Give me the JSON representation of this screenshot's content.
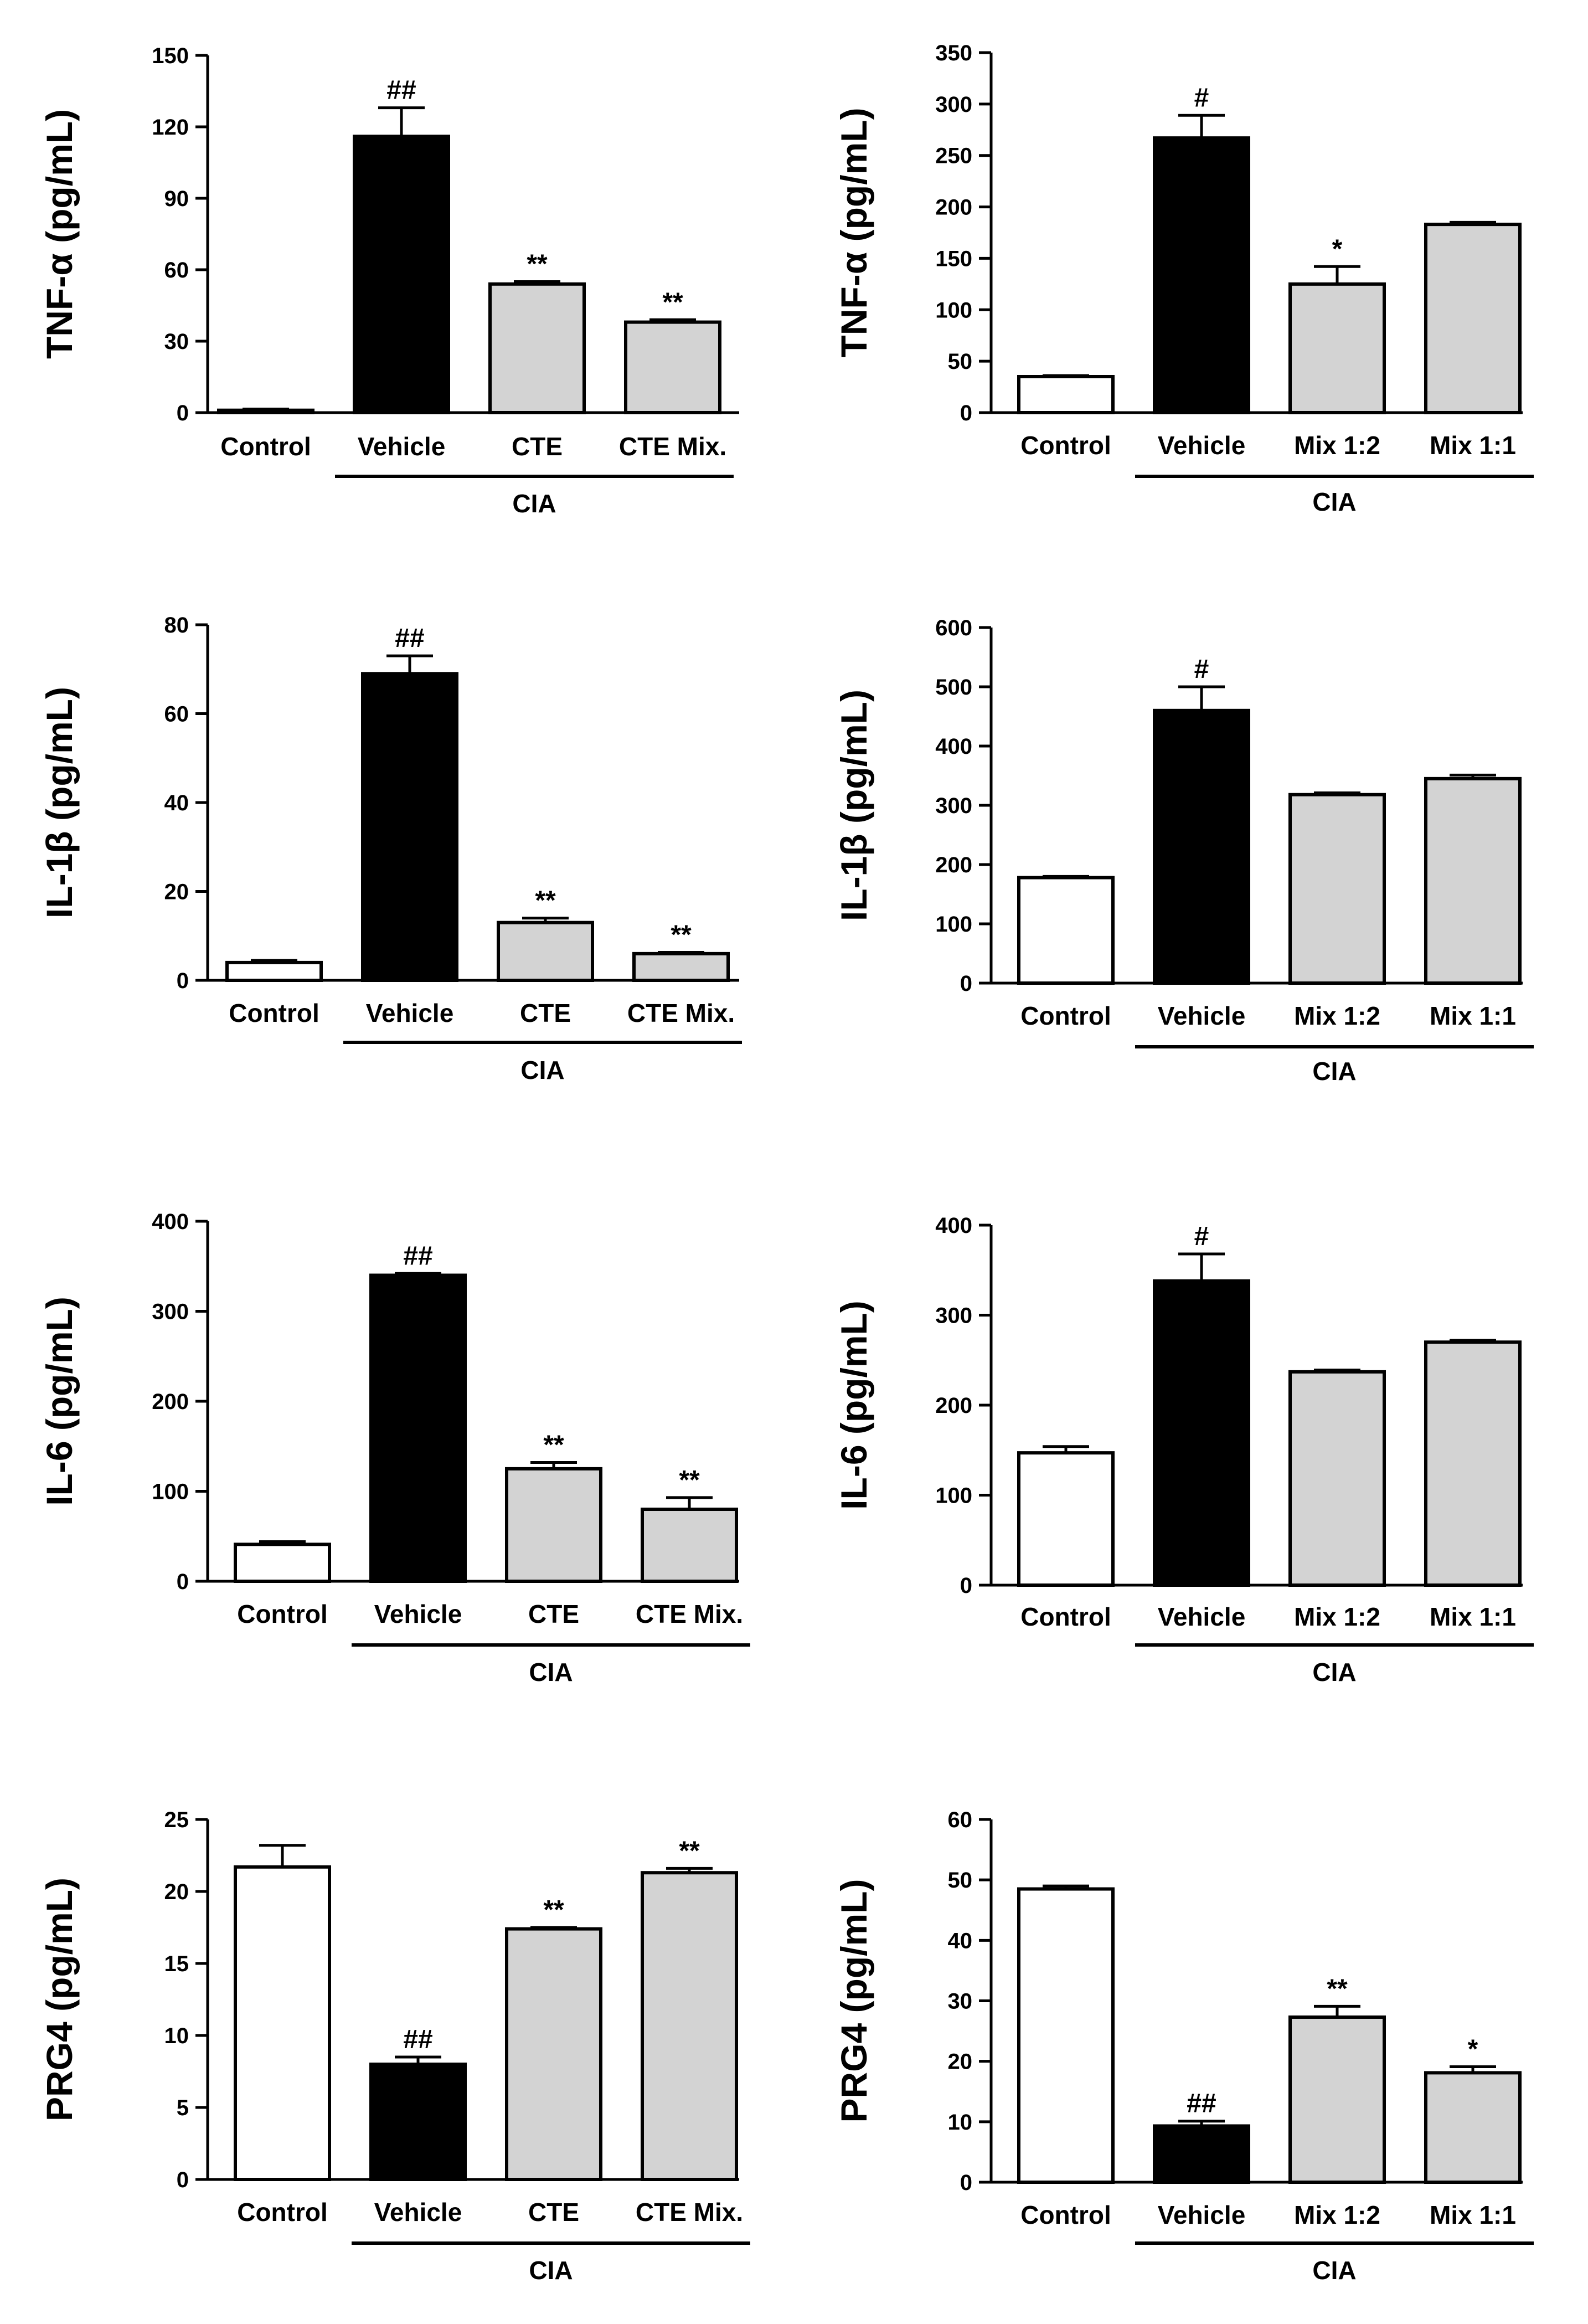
{
  "page": {
    "background": "#ffffff"
  },
  "colors": {
    "control": "#ffffff",
    "vehicle": "#000000",
    "treatment": "#d3d3d3",
    "axis": "#000000"
  },
  "chart_data": [
    {
      "id": "tnf-cte",
      "type": "bar",
      "ylabel": "TNF-α (pg/mL)",
      "ylim": [
        0,
        150
      ],
      "yticks": [
        0,
        30,
        60,
        90,
        120,
        150
      ],
      "tick_labels": [
        "0",
        "30",
        "60",
        "90",
        "120",
        "150"
      ],
      "categories": [
        "Control",
        "Vehicle",
        "CTE",
        "CTE Mix."
      ],
      "values": [
        1,
        116,
        54,
        38
      ],
      "errors": [
        0.5,
        12,
        1,
        1
      ],
      "annotations": [
        "",
        "##",
        "**",
        "**"
      ],
      "group_label": "CIA"
    },
    {
      "id": "tnf-mix",
      "type": "bar",
      "ylabel": "TNF-α (pg/mL)",
      "ylim": [
        0,
        350
      ],
      "yticks": [
        0,
        50,
        100,
        150,
        200,
        250,
        300,
        350
      ],
      "tick_labels": [
        "0",
        "50",
        "100",
        "150",
        "200",
        "250",
        "300",
        "350"
      ],
      "categories": [
        "Control",
        "Vehicle",
        "Mix 1:2",
        "Mix 1:1"
      ],
      "values": [
        35,
        267,
        125,
        183
      ],
      "errors": [
        1,
        22,
        17,
        2
      ],
      "annotations": [
        "",
        "#",
        "*",
        ""
      ],
      "group_label": "CIA"
    },
    {
      "id": "il1b-cte",
      "type": "bar",
      "ylabel": "IL-1β (pg/mL)",
      "ylim": [
        0,
        80
      ],
      "yticks": [
        0,
        20,
        40,
        60,
        80
      ],
      "tick_labels": [
        "0",
        "20",
        "40",
        "60",
        "80"
      ],
      "categories": [
        "Control",
        "Vehicle",
        "CTE",
        "CTE Mix."
      ],
      "values": [
        4,
        69,
        13,
        6
      ],
      "errors": [
        0.5,
        4,
        1,
        0.3
      ],
      "annotations": [
        "",
        "##",
        "**",
        "**"
      ],
      "group_label": "CIA"
    },
    {
      "id": "il1b-mix",
      "type": "bar",
      "ylabel": "IL-1β (pg/mL)",
      "ylim": [
        0,
        600
      ],
      "yticks": [
        0,
        100,
        200,
        300,
        400,
        500,
        600
      ],
      "tick_labels": [
        "0",
        "100",
        "200",
        "300",
        "400",
        "500",
        "600"
      ],
      "categories": [
        "Control",
        "Vehicle",
        "Mix 1:2",
        "Mix 1:1"
      ],
      "values": [
        178,
        460,
        318,
        345
      ],
      "errors": [
        2,
        40,
        3,
        6
      ],
      "annotations": [
        "",
        "#",
        "",
        ""
      ],
      "group_label": "CIA"
    },
    {
      "id": "il6-cte",
      "type": "bar",
      "ylabel": "IL-6 (pg/mL)",
      "ylim": [
        0,
        400
      ],
      "yticks": [
        0,
        100,
        200,
        300,
        400
      ],
      "tick_labels": [
        "0",
        "100",
        "200",
        "300",
        "400"
      ],
      "categories": [
        "Control",
        "Vehicle",
        "CTE",
        "CTE Mix."
      ],
      "values": [
        41,
        340,
        125,
        80
      ],
      "errors": [
        3,
        2,
        7,
        13
      ],
      "annotations": [
        "",
        "##",
        "**",
        "**"
      ],
      "group_label": "CIA"
    },
    {
      "id": "il6-mix",
      "type": "bar",
      "ylabel": "IL-6 (pg/mL)",
      "ylim": [
        0,
        400
      ],
      "yticks": [
        0,
        100,
        200,
        300,
        400
      ],
      "tick_labels": [
        "0",
        "100",
        "200",
        "300",
        "400"
      ],
      "categories": [
        "Control",
        "Vehicle",
        "Mix 1:2",
        "Mix 1:1"
      ],
      "values": [
        147,
        338,
        237,
        270
      ],
      "errors": [
        7,
        30,
        2,
        2
      ],
      "annotations": [
        "",
        "#",
        "",
        ""
      ],
      "group_label": "CIA"
    },
    {
      "id": "prg4-cte",
      "type": "bar",
      "ylabel": "PRG4 (pg/mL)",
      "ylim": [
        0,
        25
      ],
      "yticks": [
        0,
        5,
        10,
        15,
        20,
        25
      ],
      "tick_labels": [
        "0",
        "5",
        "10",
        "15",
        "20",
        "25"
      ],
      "categories": [
        "Control",
        "Vehicle",
        "CTE",
        "CTE Mix."
      ],
      "values": [
        21.7,
        8.0,
        17.4,
        21.3
      ],
      "errors": [
        1.5,
        0.5,
        0.1,
        0.3
      ],
      "annotations": [
        "",
        "##",
        "**",
        "**"
      ],
      "group_label": "CIA"
    },
    {
      "id": "prg4-mix",
      "type": "bar",
      "ylabel": "PRG4 (pg/mL)",
      "ylim": [
        0,
        60
      ],
      "yticks": [
        0,
        10,
        20,
        30,
        40,
        50,
        60
      ],
      "tick_labels": [
        "0",
        "10",
        "20",
        "30",
        "40",
        "50",
        "60"
      ],
      "categories": [
        "Control",
        "Vehicle",
        "Mix 1:2",
        "Mix 1:1"
      ],
      "values": [
        48.5,
        9.3,
        27.3,
        18.1
      ],
      "errors": [
        0.5,
        0.8,
        1.8,
        1.0
      ],
      "annotations": [
        "",
        "##",
        "**",
        "*"
      ],
      "group_label": "CIA"
    }
  ]
}
